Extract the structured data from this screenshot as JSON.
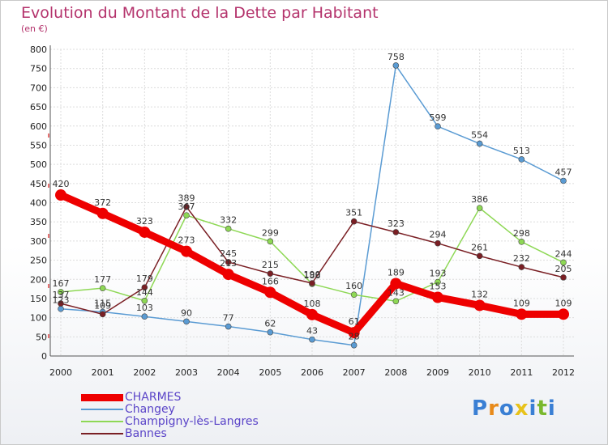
{
  "title": "Evolution du Montant de la Dette par Habitant",
  "subtitle": "(en €)",
  "logo": {
    "letters": [
      "P",
      "r",
      "o",
      "x",
      "i",
      "t",
      "i"
    ],
    "colors": [
      "#3a7fd4",
      "#e88a1a",
      "#3a7fd4",
      "#e8c21a",
      "#3a7fd4",
      "#7ab82e",
      "#3a7fd4"
    ]
  },
  "chart_data": {
    "type": "line",
    "title": "Evolution du Montant de la Dette par Habitant",
    "ylabel": "(en €)",
    "xlabel": "",
    "ylim": [
      0,
      800
    ],
    "yticks": [
      0,
      50,
      100,
      150,
      200,
      250,
      300,
      350,
      400,
      450,
      500,
      550,
      600,
      650,
      700,
      750,
      800
    ],
    "grid": true,
    "legend": "bottom-left",
    "x": [
      "2000",
      "2001",
      "2002",
      "2003",
      "2004",
      "2005",
      "2006",
      "2007",
      "2008",
      "2009",
      "2010",
      "2011",
      "2012"
    ],
    "series": [
      {
        "name": "CHARMES",
        "color": "#ee0000",
        "width": 9,
        "marker": 7,
        "values": [
          420,
          372,
          323,
          273,
          213,
          166,
          108,
          61,
          189,
          153,
          132,
          109,
          109
        ]
      },
      {
        "name": "Changey",
        "color": "#5a9bd3",
        "width": 1.5,
        "marker": 3.5,
        "values": [
          123,
          115,
          103,
          90,
          77,
          62,
          43,
          28,
          758,
          599,
          554,
          513,
          457
        ]
      },
      {
        "name": "Champigny-lès-Langres",
        "color": "#8ed855",
        "width": 1.5,
        "marker": 3.5,
        "values": [
          167,
          177,
          144,
          367,
          332,
          299,
          188,
          160,
          143,
          193,
          386,
          298,
          244
        ]
      },
      {
        "name": "Bannes",
        "color": "#7a1f24",
        "width": 1.5,
        "marker": 3.5,
        "values": [
          137,
          109,
          179,
          389,
          245,
          215,
          190,
          351,
          323,
          294,
          261,
          232,
          205
        ]
      }
    ]
  }
}
